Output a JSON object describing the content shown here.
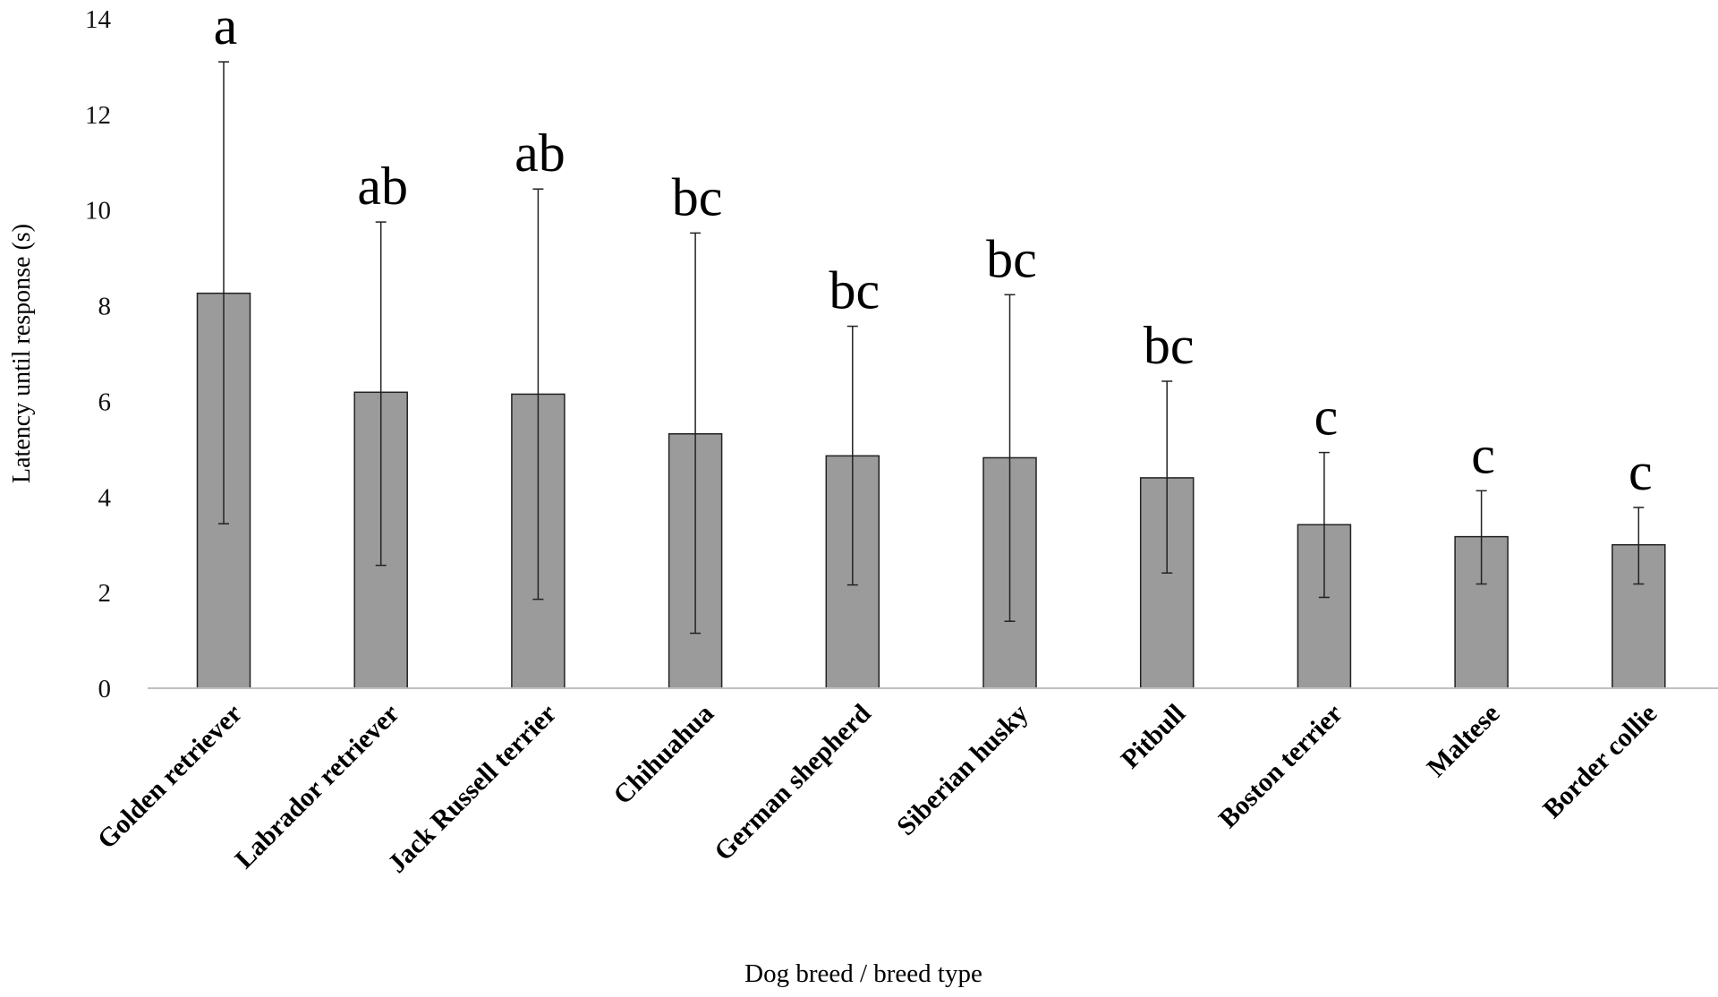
{
  "chart_data": {
    "type": "bar",
    "title": "",
    "xlabel": "Dog breed / breed type",
    "ylabel": "Latency until response (s)",
    "ylim": [
      0,
      14
    ],
    "yticks": [
      0,
      2,
      4,
      6,
      8,
      10,
      12,
      14
    ],
    "grid": false,
    "legend": "none",
    "categories": [
      "Golden retriever",
      "Labrador retriever",
      "Jack Russell terrier",
      "Chihuahua",
      "German shepherd",
      "Siberian husky",
      "Pitbull",
      "Boston terrier",
      "Maltese",
      "Border collie"
    ],
    "values": [
      8.26,
      6.19,
      6.15,
      5.32,
      4.86,
      4.82,
      4.4,
      3.42,
      3.17,
      3.0
    ],
    "error_upper": [
      13.1,
      9.75,
      10.44,
      9.52,
      7.57,
      8.23,
      6.42,
      4.93,
      4.13,
      3.78
    ],
    "error_lower": [
      3.44,
      2.57,
      1.86,
      1.15,
      2.16,
      1.4,
      2.41,
      1.9,
      2.18,
      2.18
    ],
    "significance_letters": [
      "a",
      "ab",
      "ab",
      "bc",
      "bc",
      "bc",
      "bc",
      "c",
      "c",
      "c"
    ],
    "colors": {
      "bar_fill": "#9b9b9b",
      "bar_stroke": "#222222",
      "axis": "#bfbfbf"
    }
  }
}
